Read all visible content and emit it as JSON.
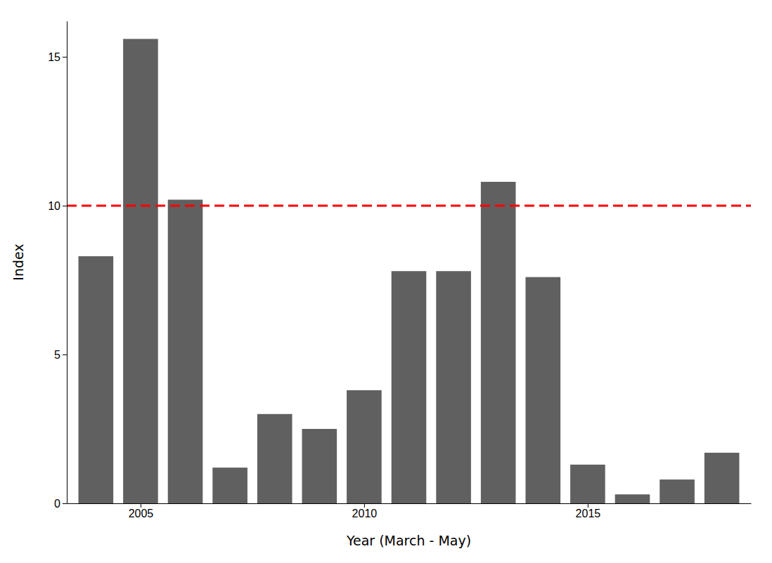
{
  "chart_data": {
    "type": "bar",
    "x": [
      2004,
      2005,
      2006,
      2007,
      2008,
      2009,
      2010,
      2011,
      2012,
      2013,
      2014,
      2015,
      2016,
      2017,
      2018
    ],
    "values": [
      8.3,
      15.6,
      10.2,
      1.2,
      3.0,
      2.5,
      3.8,
      7.8,
      7.8,
      10.8,
      7.6,
      1.3,
      0.3,
      0.8,
      1.7
    ],
    "color": "#606060",
    "xlabel": "Year (March - May)",
    "ylabel": "Index",
    "xlim": [
      2003.35,
      2018.65
    ],
    "ylim": [
      0,
      16.2
    ],
    "xticks": [
      2005,
      2010,
      2015
    ],
    "yticks": [
      0,
      5,
      10,
      15
    ],
    "grid": false,
    "reference_line": {
      "y": 10,
      "color": "#FF0000",
      "line_style": "dashed"
    }
  }
}
